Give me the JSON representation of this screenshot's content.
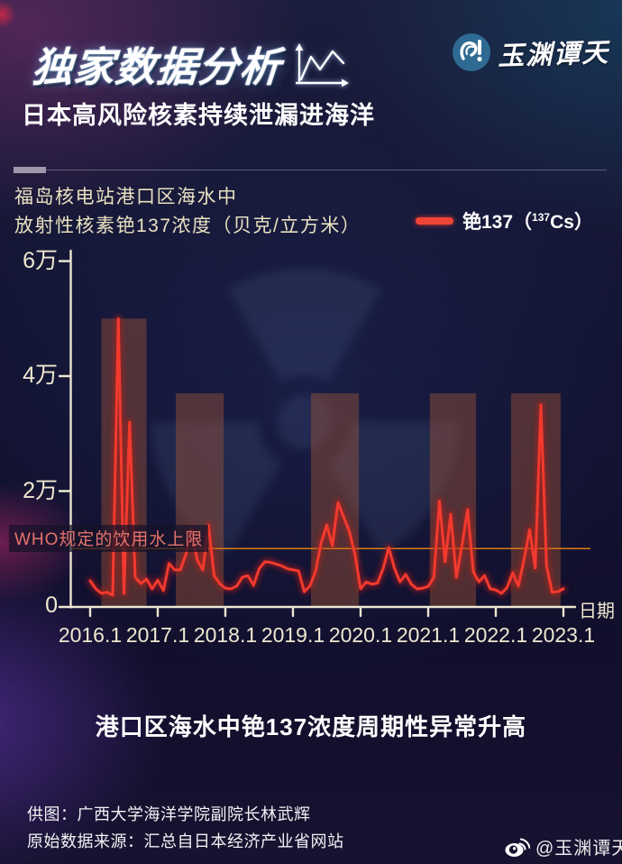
{
  "header": {
    "title": "独家数据分析",
    "subtitle": "日本高风险核素持续泄漏进海洋",
    "logo_text": "玉渊谭天"
  },
  "chart": {
    "title_line1": "福岛核电站港口区海水中",
    "title_line2": "放射性核素铯137浓度（贝克/立方米）",
    "legend": {
      "name": "铯137",
      "paren_open": "（",
      "isotope_sup": "137",
      "isotope_symbol": "Cs",
      "paren_close": "）"
    }
  },
  "chart_data": {
    "type": "line",
    "title": "福岛核电站港口区海水中放射性核素铯137浓度（贝克/立方米）",
    "unit": "贝克/立方米",
    "xlabel": "日期",
    "ylim": [
      0,
      60000
    ],
    "grid": false,
    "legend_position": "top-right",
    "y_ticks": [
      {
        "value": 0,
        "label": "0"
      },
      {
        "value": 20000,
        "label": "2万"
      },
      {
        "value": 40000,
        "label": "4万"
      },
      {
        "value": 60000,
        "label": "6万"
      }
    ],
    "x_ticks": [
      {
        "month_index": 0,
        "label": "2016.1"
      },
      {
        "month_index": 12,
        "label": "2017.1"
      },
      {
        "month_index": 24,
        "label": "2018.1"
      },
      {
        "month_index": 36,
        "label": "2019.1"
      },
      {
        "month_index": 48,
        "label": "2020.1"
      },
      {
        "month_index": 60,
        "label": "2021.1"
      },
      {
        "month_index": 72,
        "label": "2022.1"
      },
      {
        "month_index": 84,
        "label": "2023.1"
      }
    ],
    "who_limit": {
      "label": "WHO规定的饮用水上限",
      "value": 10000
    },
    "series": [
      {
        "name": "铯137（137Cs）",
        "start": "2016.1",
        "interval": "monthly",
        "values": [
          4400,
          3000,
          2200,
          2400,
          1900,
          50000,
          2200,
          32000,
          5000,
          3900,
          4700,
          3000,
          4500,
          2700,
          7400,
          6300,
          6300,
          9000,
          13300,
          8000,
          6300,
          14100,
          5300,
          3900,
          3100,
          3000,
          3450,
          5000,
          5300,
          3600,
          6500,
          7700,
          7600,
          7300,
          7000,
          6500,
          6300,
          6100,
          2500,
          3500,
          6000,
          11000,
          14100,
          10500,
          18000,
          15500,
          13000,
          9000,
          3000,
          4200,
          3800,
          4000,
          6500,
          10200,
          6600,
          4200,
          5500,
          3800,
          3000,
          3100,
          3400,
          5000,
          18300,
          7700,
          16000,
          5000,
          10500,
          16800,
          6000,
          4200,
          5300,
          3000,
          2800,
          2200,
          3200,
          5800,
          3450,
          8000,
          13300,
          6600,
          35000,
          7000,
          2400,
          2500,
          3000
        ]
      }
    ],
    "highlight_bands": [
      {
        "from_month": 2,
        "to_month": 10,
        "top_value": 50000
      },
      {
        "from_month": 15.2,
        "to_month": 23.7,
        "top_value": 37000
      },
      {
        "from_month": 39.2,
        "to_month": 47.7,
        "top_value": 37000
      },
      {
        "from_month": 60.3,
        "to_month": 68.5,
        "top_value": 37000
      },
      {
        "from_month": 74.7,
        "to_month": 83.5,
        "top_value": 37000
      }
    ],
    "annotation": "港口区海水中铯137浓度周期性异常升高"
  },
  "caption": "港口区海水中铯137浓度周期性异常升高",
  "credits": {
    "line1": "供图：广西大学海洋学院副院长林武辉",
    "line2": "原始数据来源：汇总自日本经济产业省网站"
  },
  "watermark": {
    "handle": "@玉渊谭天"
  },
  "colors": {
    "line": "#f23a2e",
    "line_glow": "#c21f18",
    "band": "#a85838",
    "who_line": "#d97b16",
    "axis": "#ece6d1",
    "cream_text": "#efe8d0",
    "swatch": "#ee4437"
  }
}
